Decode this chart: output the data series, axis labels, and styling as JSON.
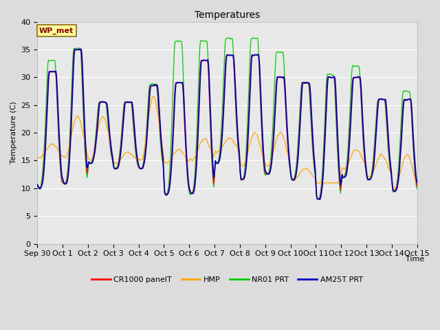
{
  "title": "Temperatures",
  "xlabel": "Time",
  "ylabel": "Temperature (C)",
  "ylim": [
    0,
    40
  ],
  "yticks": [
    0,
    5,
    10,
    15,
    20,
    25,
    30,
    35,
    40
  ],
  "x_labels": [
    "Sep 30",
    "Oct 1",
    "Oct 2",
    "Oct 3",
    "Oct 4",
    "Oct 5",
    "Oct 6",
    "Oct 7",
    "Oct 8",
    "Oct 9",
    "Oct 10",
    "Oct 11",
    "Oct 12",
    "Oct 13",
    "Oct 14",
    "Oct 15"
  ],
  "legend_labels": [
    "CR1000 panelT",
    "HMP",
    "NR01 PRT",
    "AM25T PRT"
  ],
  "line_colors": [
    "#ff0000",
    "#ffa500",
    "#00cc00",
    "#0000bb"
  ],
  "wp_met_label": "WP_met",
  "fig_bg": "#dcdcdc",
  "ax_bg": "#e8e8e8",
  "grid_color": "#ffffff",
  "title_fontsize": 10,
  "label_fontsize": 8,
  "tick_fontsize": 8
}
